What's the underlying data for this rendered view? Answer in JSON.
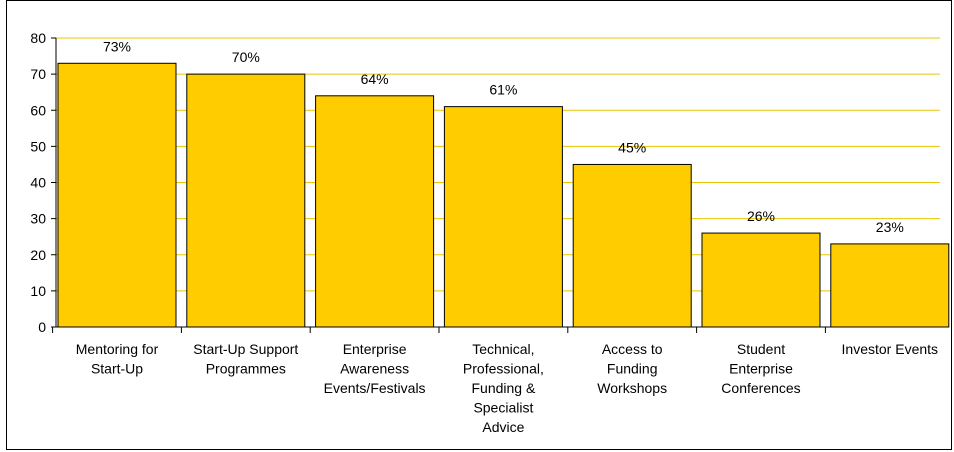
{
  "chart_data": {
    "type": "bar",
    "categories": [
      [
        "Mentoring for",
        "Start-Up"
      ],
      [
        "Start-Up Support",
        "Programmes"
      ],
      [
        "Enterprise",
        "Awareness",
        "Events/Festivals"
      ],
      [
        "Technical,",
        "Professional,",
        "Funding &",
        "Specialist",
        "Advice"
      ],
      [
        "Access to",
        "Funding",
        "Workshops"
      ],
      [
        "Student",
        "Enterprise",
        "Conferences"
      ],
      [
        "Investor Events"
      ]
    ],
    "values": [
      73,
      70,
      64,
      61,
      45,
      26,
      23
    ],
    "data_labels": [
      "73%",
      "70%",
      "64%",
      "61%",
      "45%",
      "26%",
      "23%"
    ],
    "ylim": [
      0,
      80
    ],
    "yticks": [
      0,
      10,
      20,
      30,
      40,
      50,
      60,
      70,
      80
    ],
    "title": "",
    "xlabel": "",
    "ylabel": "",
    "grid": true,
    "legend": "none",
    "colors": {
      "bar_fill": "#FFCC00",
      "bar_stroke": "#000000",
      "gridline": "#E8C800",
      "axis": "#000000"
    }
  }
}
